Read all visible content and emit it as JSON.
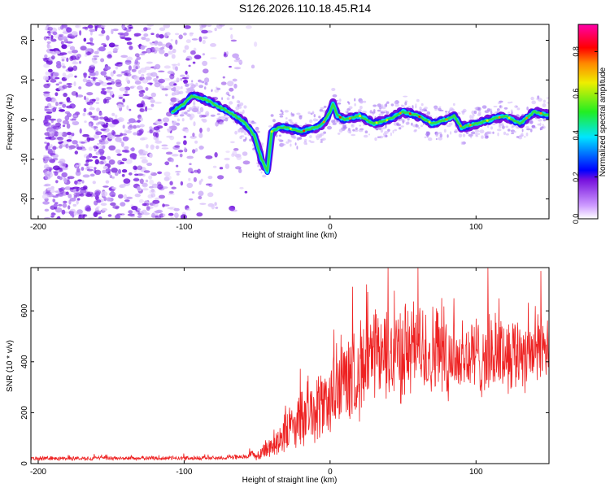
{
  "figure_title": "S126.2026.110.18.45.R14",
  "colors": {
    "snr_line": "#ee2222",
    "axis": "#000000",
    "background": "#ffffff"
  },
  "chart_data": [
    {
      "type": "heatmap",
      "title": "S126.2026.110.18.45.R14",
      "xlabel": "Height of straight line (km)",
      "ylabel": "Frequency (Hz)",
      "xlim": [
        -205,
        150
      ],
      "ylim": [
        -25,
        24
      ],
      "xticks": [
        -200,
        -100,
        0,
        100
      ],
      "xtick_labels": [
        "-200",
        "-100",
        "0",
        "100"
      ],
      "yticks": [
        -20,
        -10,
        0,
        10,
        20
      ],
      "ytick_labels": [
        "-20",
        "-10",
        "0",
        "10",
        "20"
      ],
      "colorbar": {
        "label": "Normalized spectral amplitude",
        "range": [
          0.0,
          0.93
        ],
        "ticks": [
          0.0,
          0.2,
          0.4,
          0.6,
          0.8
        ],
        "tick_labels": [
          "0.0",
          "0.2",
          "0.4",
          "0.6",
          "0.8"
        ],
        "colormap": "rainbow (white-violet-blue-cyan-green-yellow-red-magenta)"
      },
      "noise_region_x": [
        -205,
        -60
      ],
      "ridge": {
        "description": "dominant frequency trace",
        "x": [
          -108,
          -100,
          -95,
          -85,
          -75,
          -65,
          -58,
          -52,
          -47,
          -43,
          -40,
          -35,
          -30,
          -20,
          -10,
          -5,
          0,
          2,
          5,
          10,
          20,
          30,
          40,
          50,
          60,
          70,
          80,
          85,
          90,
          100,
          110,
          120,
          130,
          140,
          150
        ],
        "y": [
          2,
          4,
          6,
          5,
          3,
          1,
          -1,
          -4,
          -10,
          -13,
          -3,
          -2,
          -2,
          -3,
          -2,
          -1,
          2,
          4,
          1,
          0,
          1,
          -1,
          0,
          2,
          1,
          -1,
          0,
          1,
          -2,
          -1,
          0,
          1,
          -1,
          2,
          1
        ]
      }
    },
    {
      "type": "line",
      "xlabel": "Height of straight line (km)",
      "ylabel": "SNR (10 * v/v)",
      "xlim": [
        -205,
        150
      ],
      "ylim": [
        0,
        770
      ],
      "xticks": [
        -200,
        -100,
        0,
        100
      ],
      "xtick_labels": [
        "-200",
        "-100",
        "0",
        "100"
      ],
      "yticks": [
        0,
        200,
        400,
        600
      ],
      "ytick_labels": [
        "0",
        "200",
        "400",
        "600"
      ],
      "series": [
        {
          "name": "SNR",
          "envelope_x": [
            -205,
            -80,
            -60,
            -50,
            -40,
            -30,
            -20,
            -10,
            0,
            10,
            20,
            30,
            40,
            50,
            60,
            70,
            80,
            90,
            100,
            110,
            120,
            130,
            140,
            150
          ],
          "mean": [
            20,
            22,
            25,
            35,
            70,
            130,
            170,
            210,
            260,
            320,
            370,
            410,
            430,
            440,
            450,
            440,
            430,
            420,
            420,
            430,
            440,
            440,
            450,
            460
          ],
          "spread": [
            8,
            8,
            10,
            20,
            50,
            90,
            110,
            130,
            150,
            170,
            180,
            190,
            190,
            190,
            190,
            180,
            170,
            160,
            160,
            150,
            150,
            150,
            150,
            140
          ]
        }
      ]
    }
  ]
}
